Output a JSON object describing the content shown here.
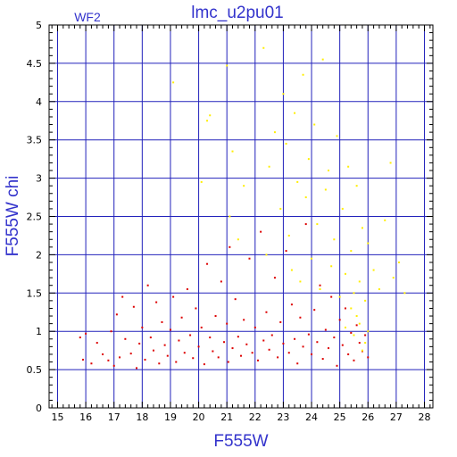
{
  "chart_data": {
    "type": "scatter",
    "title": "lmc_u2pu01",
    "panel_label": "WF2",
    "xlabel": "F555W",
    "ylabel": "F555W  chi",
    "xlim": [
      14.7,
      28.3
    ],
    "ylim": [
      0,
      5
    ],
    "x_ticks": [
      15,
      16,
      17,
      18,
      19,
      20,
      21,
      22,
      23,
      24,
      25,
      26,
      27,
      28
    ],
    "y_ticks": [
      0,
      0.5,
      1,
      1.5,
      2,
      2.5,
      3,
      3.5,
      4,
      4.5,
      5
    ],
    "grid": true,
    "colors": {
      "grid": "#2222bb",
      "frame": "#000000",
      "text": "#3333cc",
      "series_low": "#dd0000",
      "series_high": "#ffee00"
    },
    "series": [
      {
        "color": "#dd0000",
        "points": [
          [
            15.8,
            0.92
          ],
          [
            15.9,
            0.63
          ],
          [
            16.0,
            0.97
          ],
          [
            16.2,
            0.58
          ],
          [
            16.4,
            0.85
          ],
          [
            16.6,
            0.7
          ],
          [
            16.8,
            0.62
          ],
          [
            16.9,
            1.0
          ],
          [
            17.0,
            0.55
          ],
          [
            17.1,
            1.22
          ],
          [
            17.2,
            0.66
          ],
          [
            17.3,
            1.45
          ],
          [
            17.4,
            0.9
          ],
          [
            17.6,
            0.71
          ],
          [
            17.7,
            1.32
          ],
          [
            17.8,
            0.52
          ],
          [
            17.9,
            0.84
          ],
          [
            18.0,
            1.05
          ],
          [
            18.1,
            0.63
          ],
          [
            18.2,
            1.6
          ],
          [
            18.3,
            0.92
          ],
          [
            18.4,
            0.75
          ],
          [
            18.5,
            1.38
          ],
          [
            18.6,
            0.58
          ],
          [
            18.7,
            1.12
          ],
          [
            18.8,
            0.82
          ],
          [
            18.9,
            0.68
          ],
          [
            19.0,
            1.02
          ],
          [
            19.1,
            1.45
          ],
          [
            19.2,
            0.6
          ],
          [
            19.3,
            0.88
          ],
          [
            19.4,
            1.18
          ],
          [
            19.5,
            0.72
          ],
          [
            19.6,
            1.55
          ],
          [
            19.7,
            0.95
          ],
          [
            19.8,
            0.65
          ],
          [
            19.9,
            1.3
          ],
          [
            20.0,
            0.8
          ],
          [
            20.1,
            1.05
          ],
          [
            20.2,
            0.57
          ],
          [
            20.3,
            1.88
          ],
          [
            20.4,
            0.92
          ],
          [
            20.5,
            0.74
          ],
          [
            20.6,
            1.2
          ],
          [
            20.7,
            0.66
          ],
          [
            20.8,
            1.65
          ],
          [
            20.9,
            0.86
          ],
          [
            21.0,
            1.1
          ],
          [
            21.05,
            0.6
          ],
          [
            21.1,
            2.1
          ],
          [
            21.2,
            0.78
          ],
          [
            21.3,
            1.42
          ],
          [
            21.4,
            0.93
          ],
          [
            21.5,
            0.68
          ],
          [
            21.6,
            1.15
          ],
          [
            21.7,
            0.83
          ],
          [
            21.8,
            1.95
          ],
          [
            21.9,
            0.72
          ],
          [
            22.0,
            1.05
          ],
          [
            22.1,
            0.62
          ],
          [
            22.2,
            2.3
          ],
          [
            22.3,
            0.88
          ],
          [
            22.4,
            1.25
          ],
          [
            22.5,
            0.76
          ],
          [
            22.6,
            0.95
          ],
          [
            22.7,
            1.7
          ],
          [
            22.8,
            0.66
          ],
          [
            22.9,
            1.12
          ],
          [
            23.0,
            0.84
          ],
          [
            23.1,
            2.05
          ],
          [
            23.2,
            0.72
          ],
          [
            23.3,
            1.35
          ],
          [
            23.4,
            0.9
          ],
          [
            23.5,
            0.58
          ],
          [
            23.6,
            1.18
          ],
          [
            23.7,
            0.8
          ],
          [
            23.8,
            2.4
          ],
          [
            23.9,
            0.96
          ],
          [
            24.0,
            0.7
          ],
          [
            24.1,
            1.28
          ],
          [
            24.2,
            0.86
          ],
          [
            24.3,
            1.6
          ],
          [
            24.4,
            0.64
          ],
          [
            24.5,
            1.02
          ],
          [
            24.6,
            0.78
          ],
          [
            24.7,
            1.45
          ],
          [
            24.8,
            0.92
          ],
          [
            24.9,
            0.55
          ],
          [
            25.0,
            1.15
          ],
          [
            25.1,
            0.82
          ],
          [
            25.2,
            1.3
          ],
          [
            25.3,
            0.7
          ],
          [
            25.4,
            0.98
          ],
          [
            25.5,
            0.62
          ],
          [
            25.6,
            1.08
          ],
          [
            25.7,
            0.85
          ],
          [
            25.8,
            0.74
          ],
          [
            25.9,
            0.95
          ],
          [
            26.0,
            0.66
          ]
        ]
      },
      {
        "color": "#ffee00",
        "points": [
          [
            19.1,
            4.25
          ],
          [
            20.3,
            3.75
          ],
          [
            20.1,
            2.95
          ],
          [
            20.4,
            3.82
          ],
          [
            21.0,
            4.47
          ],
          [
            21.2,
            3.35
          ],
          [
            21.1,
            2.5
          ],
          [
            21.6,
            2.9
          ],
          [
            21.4,
            2.2
          ],
          [
            22.3,
            4.7
          ],
          [
            22.5,
            3.15
          ],
          [
            22.4,
            2.0
          ],
          [
            22.7,
            3.6
          ],
          [
            22.9,
            2.6
          ],
          [
            23.0,
            4.1
          ],
          [
            23.1,
            3.45
          ],
          [
            23.2,
            2.25
          ],
          [
            23.3,
            1.8
          ],
          [
            23.4,
            3.85
          ],
          [
            23.5,
            2.95
          ],
          [
            23.6,
            1.65
          ],
          [
            23.7,
            4.35
          ],
          [
            23.8,
            2.75
          ],
          [
            23.9,
            3.25
          ],
          [
            24.0,
            1.95
          ],
          [
            24.1,
            3.7
          ],
          [
            24.2,
            2.4
          ],
          [
            24.3,
            1.55
          ],
          [
            24.4,
            4.55
          ],
          [
            24.5,
            2.85
          ],
          [
            24.6,
            3.1
          ],
          [
            24.7,
            1.85
          ],
          [
            24.8,
            2.2
          ],
          [
            24.9,
            3.55
          ],
          [
            25.0,
            1.45
          ],
          [
            25.1,
            2.6
          ],
          [
            25.2,
            1.75
          ],
          [
            25.3,
            3.15
          ],
          [
            25.4,
            2.05
          ],
          [
            25.5,
            1.5
          ],
          [
            25.6,
            2.9
          ],
          [
            25.7,
            1.65
          ],
          [
            25.8,
            2.35
          ],
          [
            25.9,
            1.4
          ],
          [
            26.0,
            2.15
          ],
          [
            26.2,
            1.8
          ],
          [
            26.4,
            1.55
          ],
          [
            26.6,
            2.45
          ],
          [
            26.8,
            3.2
          ],
          [
            26.9,
            1.7
          ],
          [
            27.1,
            1.9
          ],
          [
            27.3,
            1.5
          ],
          [
            25.5,
            0.95
          ],
          [
            25.7,
            1.1
          ],
          [
            25.9,
            0.85
          ],
          [
            25.6,
            1.2
          ],
          [
            25.8,
            0.75
          ],
          [
            26.0,
            1.0
          ],
          [
            25.4,
            1.3
          ],
          [
            25.2,
            1.05
          ]
        ]
      }
    ]
  }
}
